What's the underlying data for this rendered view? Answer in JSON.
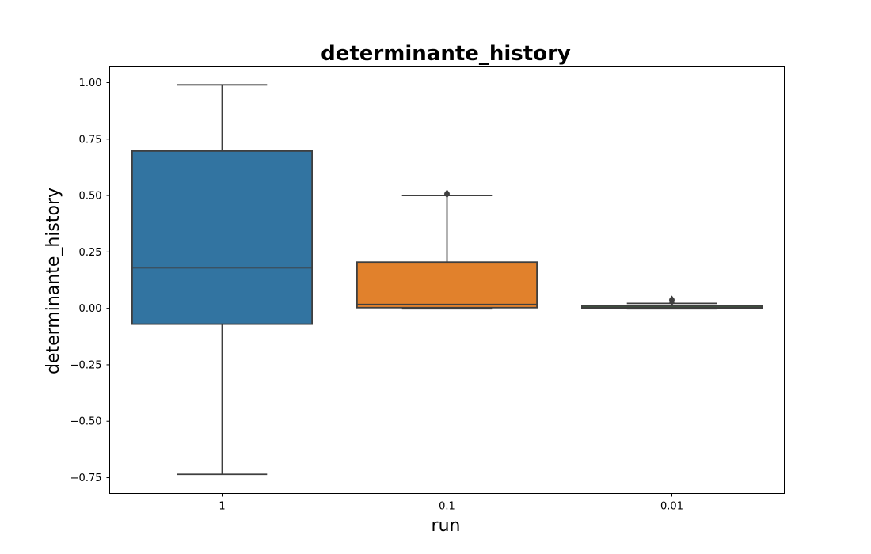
{
  "chart_data": {
    "type": "box",
    "title": "determinante_history",
    "xlabel": "run",
    "ylabel": "determinante_history",
    "ylim": [
      -0.82,
      1.07
    ],
    "yticks": [
      1.0,
      0.75,
      0.5,
      0.25,
      0.0,
      -0.25,
      -0.5,
      -0.75
    ],
    "ytick_labels": [
      "1.00",
      "0.75",
      "0.50",
      "0.25",
      "0.00",
      "−0.25",
      "−0.50",
      "−0.75"
    ],
    "categories": [
      "1",
      "0.1",
      "0.01"
    ],
    "boxes": [
      {
        "category": "1",
        "whislo": -0.735,
        "q1": -0.07,
        "median": 0.18,
        "q3": 0.697,
        "whishi": 0.99,
        "fliers": [],
        "color": "#3274a1"
      },
      {
        "category": "0.1",
        "whislo": -0.002,
        "q1": 0.003,
        "median": 0.017,
        "q3": 0.205,
        "whishi": 0.5,
        "fliers": [
          0.505,
          0.51
        ],
        "color": "#e1812c"
      },
      {
        "category": "0.01",
        "whislo": -0.002,
        "q1": 0.0,
        "median": 0.004,
        "q3": 0.011,
        "whishi": 0.022,
        "fliers": [
          0.028,
          0.035,
          0.04
        ],
        "color": "#3a923a"
      }
    ],
    "grid": false,
    "legend": "none",
    "line_color": "#3f3f3f"
  }
}
